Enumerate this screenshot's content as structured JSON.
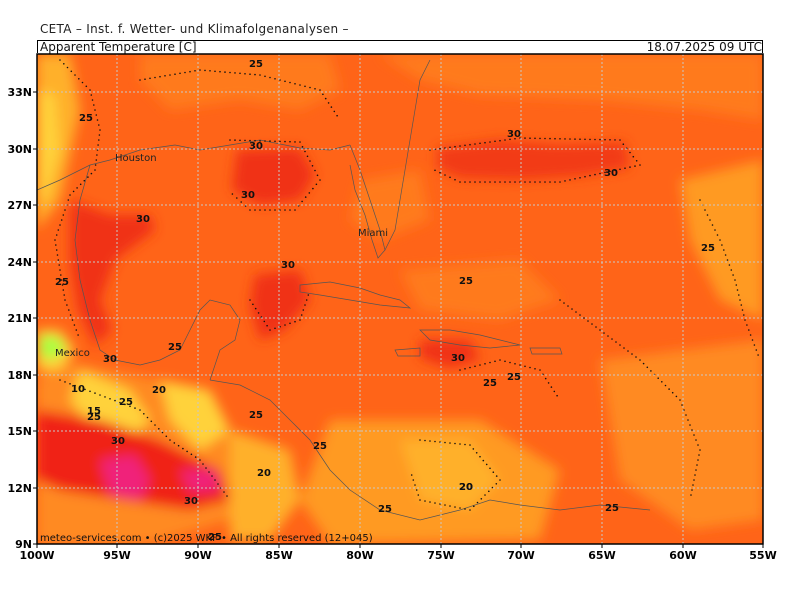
{
  "header": {
    "title": "CETA – Inst. f. Wetter- und Klimafolgenanalysen –",
    "variable": "Apparent Temperature [C]",
    "valid_time": "18.07.2025 09 UTC"
  },
  "footer": {
    "credit": "meteo-services.com • (c)2025 WKF • All rights reserved (12+045)"
  },
  "axes": {
    "lat_labels": [
      "33N",
      "30N",
      "27N",
      "24N",
      "21N",
      "18N",
      "15N",
      "12N",
      "9N"
    ],
    "lon_labels": [
      "100W",
      "95W",
      "90W",
      "85W",
      "80W",
      "75W",
      "70W",
      "65W",
      "60W",
      "55W"
    ]
  },
  "cities": [
    "Houston",
    "Miami",
    "Mexico"
  ],
  "contour_labels": [
    "25",
    "25",
    "30",
    "30",
    "30",
    "30",
    "30",
    "25",
    "25",
    "25",
    "30",
    "25",
    "30",
    "30",
    "25",
    "25",
    "10",
    "15",
    "25",
    "20",
    "25",
    "25",
    "30",
    "20",
    "20",
    "30",
    "25",
    "25",
    "25",
    "20",
    "25"
  ],
  "colors": {
    "deep_orange": "#ff5a14",
    "orange": "#ff7a1c",
    "light_orange": "#ff9a24",
    "red": "#f0201a",
    "pink": "#f0207a",
    "yellow": "#ffd23a",
    "green": "#a8ff40",
    "grid": "#c8c8c8"
  }
}
